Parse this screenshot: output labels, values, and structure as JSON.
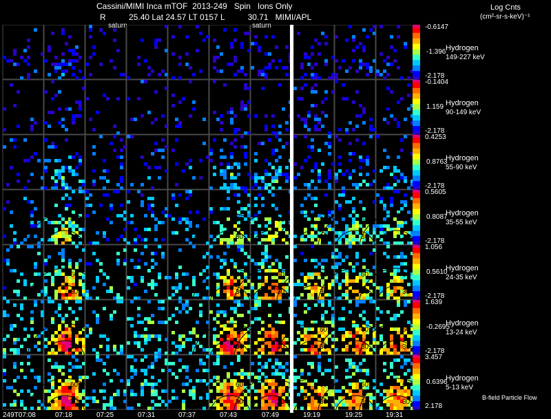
{
  "header": {
    "title": "Cassini/MIMI Inca mTOF  2013-249   Spin   Ions Only",
    "info": "R          25.40 Lat 24.57 LT 0157 L          30.71   MIMI/APL",
    "saturn_a": "saturn",
    "saturn_b": "saturn",
    "units_title": "Log Cnts",
    "units": "(cm²-sr-s-keV)⁻¹"
  },
  "footer": {
    "bfield_label": "B-field Particle Flow"
  },
  "colors": {
    "background": "#000000",
    "separator": "#ffffff",
    "frame": "#4a4a4a",
    "colorbar": [
      "#e0007a",
      "#ff0000",
      "#ff6a00",
      "#ffb000",
      "#ffff00",
      "#aaff44",
      "#33ffcc",
      "#00c8ff",
      "#0080ff",
      "#0000ff",
      "#2a00c8"
    ]
  },
  "chart_data": {
    "type": "heatmap",
    "title": "Cassini/MIMI Inca mTOF  2013-249   Spin   Ions Only",
    "time_labels": [
      "249T07:08",
      "07:18",
      "07:25",
      "07:31",
      "07:37",
      "07:43",
      "07:49",
      "19:19",
      "19:25",
      "19:31"
    ],
    "contour_labels": [
      "30",
      "60",
      "90",
      "120"
    ],
    "panels": [
      {
        "species": "Hydrogen",
        "energy": "149-227 keV",
        "cmax": "-0.6147",
        "cmid": "-1.396",
        "cmin": "-2.178",
        "density": 0.2,
        "level": 0.1
      },
      {
        "species": "Hydrogen",
        "energy": "90-149 keV",
        "cmax": "-0.1404",
        "cmid": "1.159",
        "cmin": "-2.178",
        "density": 0.15,
        "level": 0.1
      },
      {
        "species": "Hydrogen",
        "energy": "55-90 keV",
        "cmax": "0.4253",
        "cmid": "0.8763",
        "cmin": "-2.178",
        "density": 0.28,
        "level": 0.25
      },
      {
        "species": "Hydrogen",
        "energy": "35-55 keV",
        "cmax": "0.5605",
        "cmid": "0.8087",
        "cmin": "-2.178",
        "density": 0.35,
        "level": 0.45
      },
      {
        "species": "Hydrogen",
        "energy": "24-35 keV",
        "cmax": "1.056",
        "cmid": "0.5610",
        "cmin": "-2.178",
        "density": 0.42,
        "level": 0.62
      },
      {
        "species": "Hydrogen",
        "energy": "13-24 keV",
        "cmax": "1.639",
        "cmid": "-0.2695",
        "cmin": "-2.178",
        "density": 0.5,
        "level": 0.75
      },
      {
        "species": "Hydrogen",
        "energy": "5-13 keV",
        "cmax": "3.457",
        "cmid": "0.6396",
        "cmin": "2.178",
        "density": 0.55,
        "level": 0.72
      }
    ]
  }
}
